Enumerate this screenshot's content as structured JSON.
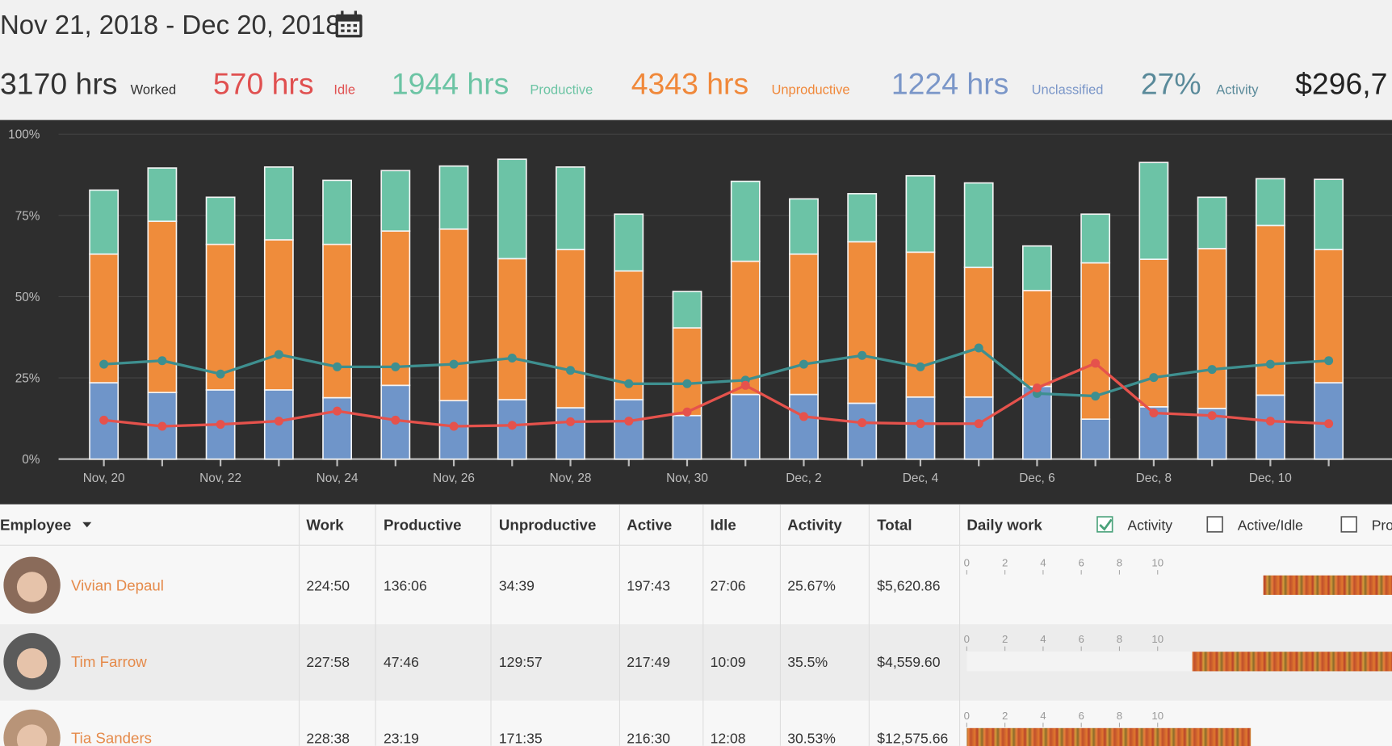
{
  "header": {
    "date_range": "Nov 21, 2018 - Dec 20, 2018",
    "stats": [
      {
        "value": "3170 hrs",
        "label": "Worked"
      },
      {
        "value": "570 hrs",
        "label": "Idle"
      },
      {
        "value": "1944 hrs",
        "label": "Productive"
      },
      {
        "value": "4343 hrs",
        "label": "Unproductive"
      },
      {
        "value": "1224 hrs",
        "label": "Unclassified"
      },
      {
        "value": "27%",
        "label": "Activity"
      },
      {
        "value": "$296,7"
      }
    ]
  },
  "chart_data": {
    "type": "stacked-bar-line",
    "categories": [
      "Nov, 20",
      null,
      "Nov, 22",
      null,
      "Nov, 24",
      null,
      "Nov, 26",
      null,
      "Nov, 28",
      null,
      "Nov, 30",
      null,
      "Dec, 2",
      null,
      "Dec, 4",
      null,
      "Dec, 6",
      null,
      "Dec, 8",
      null,
      "Dec, 10",
      null
    ],
    "ylim": [
      0,
      100
    ],
    "yticks": [
      {
        "value": 0,
        "label": "0%"
      },
      {
        "value": 25,
        "label": "25%"
      },
      {
        "value": 50,
        "label": "50%"
      },
      {
        "value": 75,
        "label": "75%"
      },
      {
        "value": 100,
        "label": "100%"
      }
    ],
    "grid": true,
    "series": [
      {
        "kind": "bar",
        "color": "#6f95c9",
        "values": [
          23.5,
          20.5,
          21.3,
          21.3,
          18.9,
          22.7,
          18.0,
          18.3,
          15.8,
          18.3,
          13.4,
          19.9,
          19.9,
          17.2,
          19.1,
          19.1,
          22.4,
          12.3,
          16.1,
          15.6,
          19.7,
          23.5
        ]
      },
      {
        "kind": "bar",
        "color": "#ef8c3b",
        "values": [
          39.6,
          52.7,
          44.8,
          46.2,
          47.2,
          47.5,
          52.8,
          43.4,
          48.7,
          39.6,
          27.0,
          41.0,
          43.2,
          49.7,
          44.6,
          39.9,
          29.5,
          48.1,
          45.4,
          49.2,
          52.2,
          41.0
        ]
      },
      {
        "kind": "bar",
        "color": "#6cc3a6",
        "values": [
          19.7,
          16.4,
          14.5,
          22.4,
          19.7,
          18.6,
          19.4,
          30.6,
          25.4,
          17.5,
          11.2,
          24.6,
          17.0,
          14.8,
          23.5,
          26.0,
          13.7,
          15.0,
          29.8,
          15.8,
          14.4,
          21.6
        ]
      },
      {
        "kind": "line",
        "color": "#3e8f8f",
        "values": [
          29.2,
          30.3,
          26.2,
          32.2,
          28.4,
          28.4,
          29.2,
          31.1,
          27.3,
          23.2,
          23.2,
          24.3,
          29.2,
          31.9,
          28.4,
          34.2,
          20.2,
          19.4,
          25.1,
          27.6,
          29.2,
          30.3
        ]
      },
      {
        "kind": "line",
        "color": "#e5524c",
        "values": [
          12.0,
          10.1,
          10.7,
          11.7,
          14.8,
          12.0,
          10.1,
          10.4,
          11.5,
          11.7,
          14.5,
          22.7,
          13.1,
          11.2,
          10.9,
          10.9,
          21.9,
          29.5,
          14.2,
          13.4,
          11.7,
          10.9
        ]
      }
    ]
  },
  "table": {
    "columns": [
      "Employee",
      "Work",
      "Productive",
      "Unproductive",
      "Active",
      "Idle",
      "Activity",
      "Total",
      "Daily work"
    ],
    "toggles": [
      "Activity",
      "Active/Idle",
      "Pro"
    ],
    "daily_work_ticks": [
      0,
      2,
      4,
      6,
      8,
      10
    ],
    "rows": [
      {
        "name": "Vivian Depaul",
        "cells": [
          "224:50",
          "136:06",
          "34:39",
          "197:43",
          "27:06",
          "25.67%",
          "$5,620.86"
        ]
      },
      {
        "name": "Tim Farrow",
        "cells": [
          "227:58",
          "47:46",
          "129:57",
          "217:49",
          "10:09",
          "35.5%",
          "$4,559.60"
        ]
      },
      {
        "name": "Tia Sanders",
        "cells": [
          "228:38",
          "23:19",
          "171:35",
          "216:30",
          "12:08",
          "30.53%",
          "$12,575.66"
        ]
      }
    ]
  }
}
